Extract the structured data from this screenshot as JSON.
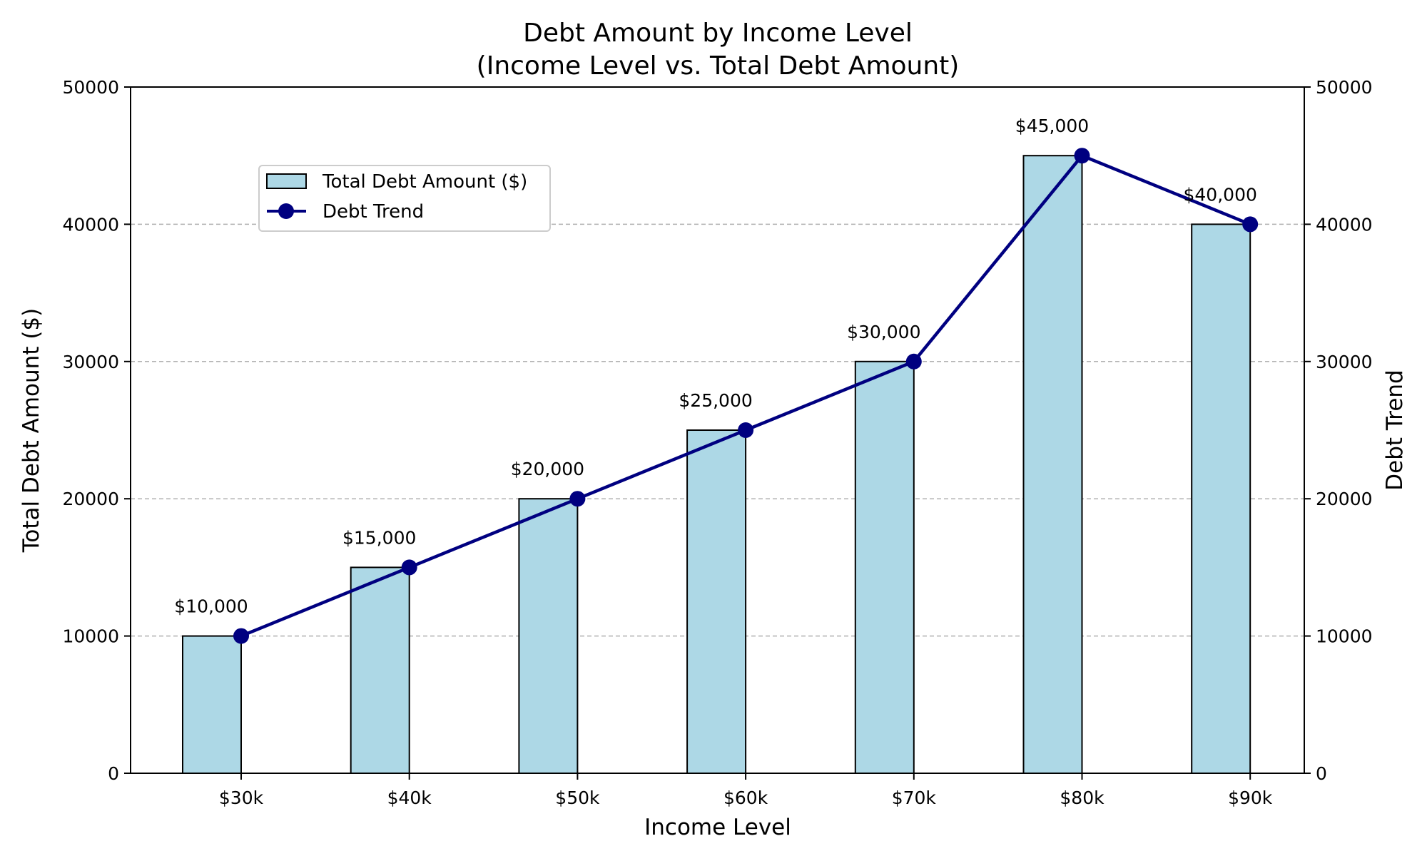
{
  "chart_data": {
    "type": "bar",
    "title": "Debt Amount by Income Level",
    "subtitle": "(Income Level vs. Total Debt Amount)",
    "xlabel": "Income Level",
    "ylabel": "Total Debt Amount ($)",
    "ylabel_right": "Debt Trend",
    "categories": [
      "$30k",
      "$40k",
      "$50k",
      "$60k",
      "$70k",
      "$80k",
      "$90k"
    ],
    "series": [
      {
        "name": "Total Debt Amount ($)",
        "type": "bar",
        "values": [
          10000,
          15000,
          20000,
          25000,
          30000,
          45000,
          40000
        ],
        "color": "#add8e6",
        "edgecolor": "#000000"
      },
      {
        "name": "Debt Trend",
        "type": "line",
        "values": [
          10000,
          15000,
          20000,
          25000,
          30000,
          45000,
          40000
        ],
        "color": "#000080",
        "marker": "circle"
      }
    ],
    "data_labels": [
      "$10,000",
      "$15,000",
      "$20,000",
      "$25,000",
      "$30,000",
      "$45,000",
      "$40,000"
    ],
    "ylim": [
      0,
      50000
    ],
    "ylim_right": [
      0,
      50000
    ],
    "yticks": [
      0,
      10000,
      20000,
      30000,
      40000,
      50000
    ],
    "grid": "horizontal dashed",
    "legend_position": "upper-left"
  }
}
